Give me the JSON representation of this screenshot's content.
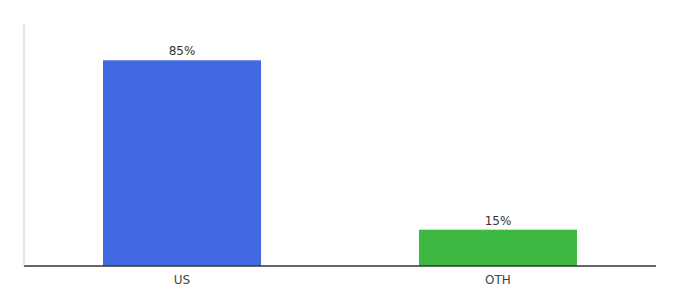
{
  "chart_data": {
    "type": "bar",
    "categories": [
      "US",
      "OTH"
    ],
    "values": [
      85,
      15
    ],
    "value_labels": [
      "85%",
      "15%"
    ],
    "colors": [
      "#4169e1",
      "#3cb843"
    ],
    "ylim": [
      0,
      100
    ],
    "data_labels": true,
    "tick_labels": "x"
  }
}
